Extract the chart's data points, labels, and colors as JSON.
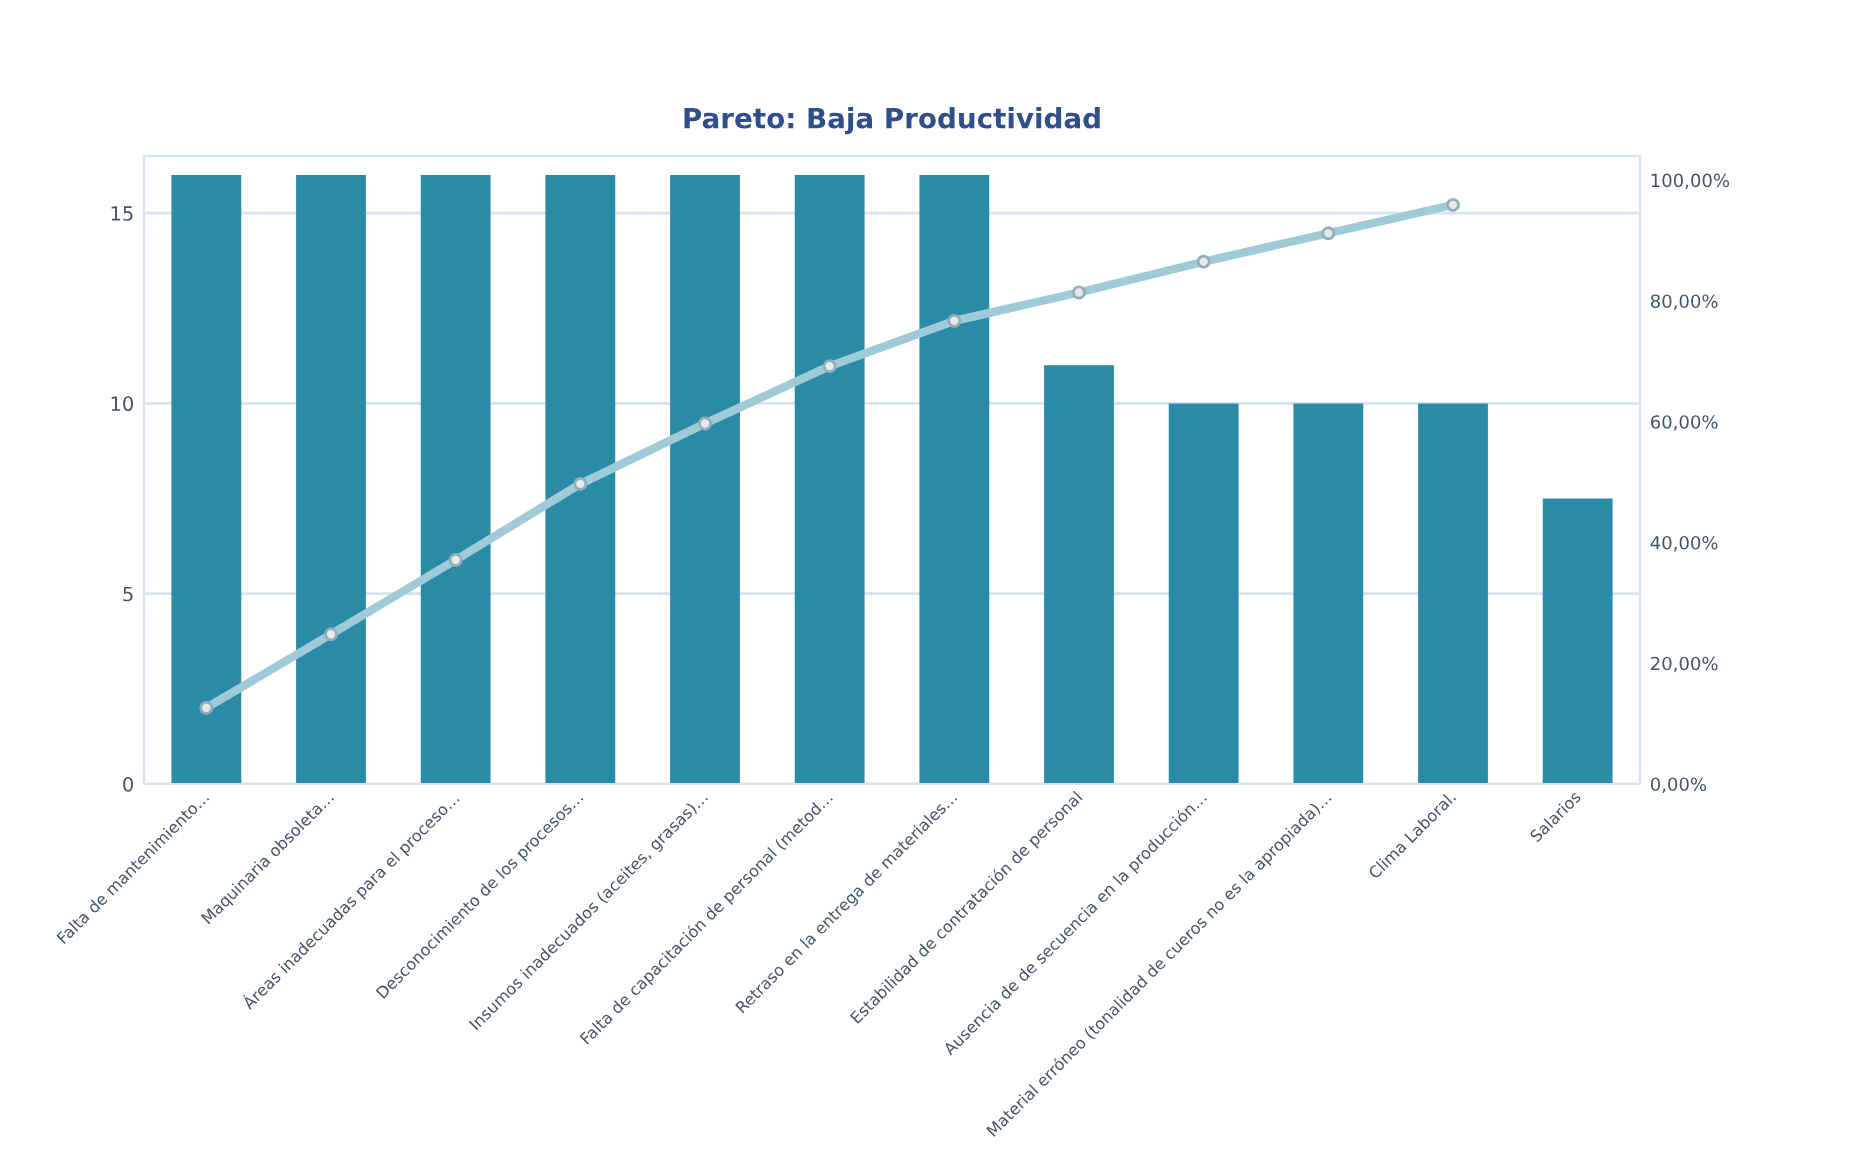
{
  "chart_data": {
    "type": "bar",
    "title": "Pareto: Baja Productividad",
    "categories": [
      "Falta de mantenimiento…",
      "Maquinaria obsoleta…",
      "Áreas inadecuadas para el proceso…",
      "Desconocimiento de los procesos…",
      "Insumos inadecuados (aceites, grasas)…",
      "Falta de capacitación de personal (metod…",
      "Retraso en la entrega de materiales…",
      "Estabilidad de contratación de personal",
      "Ausencia de de secuencia en la producción…",
      "Material erróneo (tonalidad de cueros no es la apropiada)…",
      "Clima Laboral.",
      "Salarios"
    ],
    "series": [
      {
        "color": "#2a8ba6",
        "values": [
          16,
          16,
          16,
          16,
          16,
          16,
          16,
          11,
          10,
          10,
          10,
          7.5
        ]
      },
      {
        "type": "line",
        "axis": "y2",
        "color": "#9fcbd8",
        "marker": "circle",
        "values": [
          12.6,
          24.8,
          37.1,
          49.7,
          59.7,
          69.2,
          76.7,
          81.4,
          86.5,
          91.2,
          95.9,
          null
        ]
      }
    ],
    "ylim": [
      0,
      16.5
    ],
    "yticks": [
      0,
      5,
      10,
      15
    ],
    "y2lim": [
      0,
      104
    ],
    "y2ticks": [
      {
        "value": 0,
        "label": "0,00%"
      },
      {
        "value": 20,
        "label": "20,00%"
      },
      {
        "value": 40,
        "label": "40,00%"
      },
      {
        "value": 60,
        "label": "60,00%"
      },
      {
        "value": 80,
        "label": "80,00%"
      },
      {
        "value": 100,
        "label": "100,00%"
      }
    ],
    "grid": "y"
  }
}
